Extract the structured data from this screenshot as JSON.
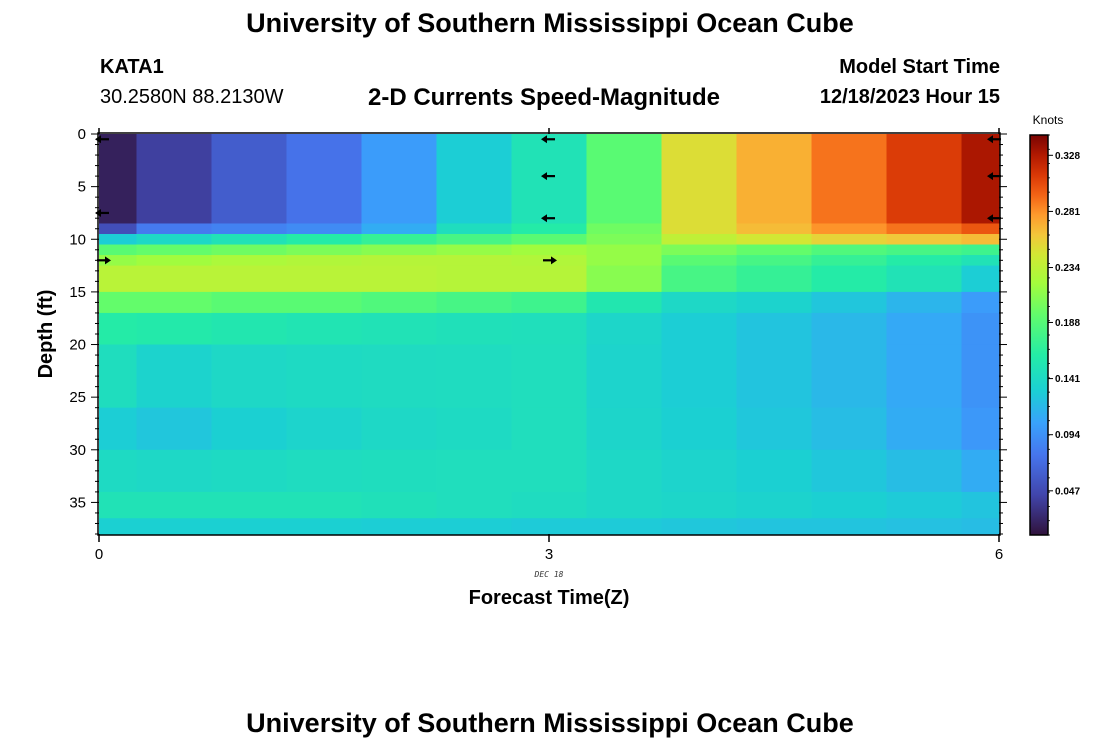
{
  "header": {
    "title": "University of Southern Mississippi Ocean Cube",
    "station": "KATA1",
    "coords": "30.2580N  88.2130W",
    "subtitle": "2-D Currents Speed-Magnitude",
    "model_start_label": "Model Start Time",
    "model_start_value": "12/18/2023 Hour 15"
  },
  "footer": {
    "title": "University of Southern Mississippi Ocean Cube"
  },
  "chart_data": {
    "type": "heatmap",
    "title": "2-D Currents Speed-Magnitude",
    "xlabel": "Forecast Time(Z)",
    "ylabel": "Depth (ft)",
    "xlim": [
      0,
      6
    ],
    "ylim": [
      38,
      0
    ],
    "x_ticks": [
      0,
      3,
      6
    ],
    "x_tick_labels": [
      "0",
      "3",
      "6"
    ],
    "y_ticks": [
      0,
      5,
      10,
      15,
      20,
      25,
      30,
      35
    ],
    "y_tick_labels": [
      "0",
      "5",
      "10",
      "15",
      "20",
      "25",
      "30",
      "35"
    ],
    "date_label": "DEC 18",
    "colorbar": {
      "units": "Knots",
      "min": 0.01,
      "max": 0.345,
      "ticks": [
        0.047,
        0.094,
        0.141,
        0.188,
        0.234,
        0.281,
        0.328
      ],
      "tick_labels": [
        "0.047",
        "0.094",
        "0.141",
        "0.188",
        "0.234",
        "0.281",
        "0.328"
      ]
    },
    "time_steps": [
      0,
      0.5,
      1,
      1.5,
      2,
      2.5,
      3,
      3.5,
      4,
      4.5,
      5,
      5.5,
      6
    ],
    "depth_breaks": [
      0,
      8.5,
      9.5,
      10.5,
      11.5,
      12.5,
      15,
      17,
      20,
      26,
      30,
      34,
      36.5,
      38
    ],
    "speeds": [
      [
        0.02,
        0.04,
        0.06,
        0.075,
        0.1,
        0.13,
        0.15,
        0.19,
        0.25,
        0.27,
        0.29,
        0.31,
        0.33
      ],
      [
        0.05,
        0.08,
        0.085,
        0.09,
        0.11,
        0.145,
        0.16,
        0.2,
        0.25,
        0.265,
        0.28,
        0.29,
        0.3
      ],
      [
        0.13,
        0.14,
        0.15,
        0.16,
        0.17,
        0.18,
        0.19,
        0.205,
        0.235,
        0.245,
        0.255,
        0.26,
        0.265
      ],
      [
        0.19,
        0.195,
        0.2,
        0.205,
        0.21,
        0.215,
        0.22,
        0.215,
        0.205,
        0.195,
        0.185,
        0.18,
        0.175
      ],
      [
        0.215,
        0.22,
        0.225,
        0.228,
        0.23,
        0.23,
        0.228,
        0.215,
        0.19,
        0.18,
        0.17,
        0.16,
        0.15
      ],
      [
        0.232,
        0.232,
        0.232,
        0.232,
        0.232,
        0.23,
        0.23,
        0.21,
        0.18,
        0.17,
        0.16,
        0.15,
        0.13
      ],
      [
        0.195,
        0.195,
        0.19,
        0.19,
        0.185,
        0.18,
        0.175,
        0.155,
        0.14,
        0.135,
        0.125,
        0.115,
        0.1
      ],
      [
        0.16,
        0.158,
        0.155,
        0.152,
        0.15,
        0.148,
        0.147,
        0.138,
        0.13,
        0.124,
        0.117,
        0.108,
        0.095
      ],
      [
        0.145,
        0.135,
        0.14,
        0.142,
        0.143,
        0.144,
        0.146,
        0.136,
        0.13,
        0.124,
        0.117,
        0.108,
        0.095
      ],
      [
        0.13,
        0.125,
        0.132,
        0.136,
        0.14,
        0.142,
        0.146,
        0.137,
        0.132,
        0.126,
        0.12,
        0.11,
        0.098
      ],
      [
        0.142,
        0.14,
        0.142,
        0.144,
        0.145,
        0.146,
        0.146,
        0.14,
        0.136,
        0.132,
        0.126,
        0.12,
        0.11
      ],
      [
        0.15,
        0.15,
        0.15,
        0.15,
        0.148,
        0.146,
        0.144,
        0.14,
        0.138,
        0.135,
        0.132,
        0.128,
        0.124
      ],
      [
        0.132,
        0.132,
        0.132,
        0.132,
        0.13,
        0.13,
        0.128,
        0.128,
        0.126,
        0.124,
        0.124,
        0.122,
        0.12
      ]
    ],
    "arrows": [
      {
        "t": 0,
        "depth": 0.5,
        "dir": "left"
      },
      {
        "t": 0,
        "depth": 7.5,
        "dir": "left"
      },
      {
        "t": 0,
        "depth": 12,
        "dir": "right"
      },
      {
        "t": 3,
        "depth": 0.5,
        "dir": "left"
      },
      {
        "t": 3,
        "depth": 4,
        "dir": "left"
      },
      {
        "t": 3,
        "depth": 8,
        "dir": "left"
      },
      {
        "t": 3,
        "depth": 12,
        "dir": "right"
      },
      {
        "t": 6,
        "depth": 0.5,
        "dir": "left"
      },
      {
        "t": 6,
        "depth": 4,
        "dir": "left"
      },
      {
        "t": 6,
        "depth": 8,
        "dir": "left"
      }
    ]
  }
}
